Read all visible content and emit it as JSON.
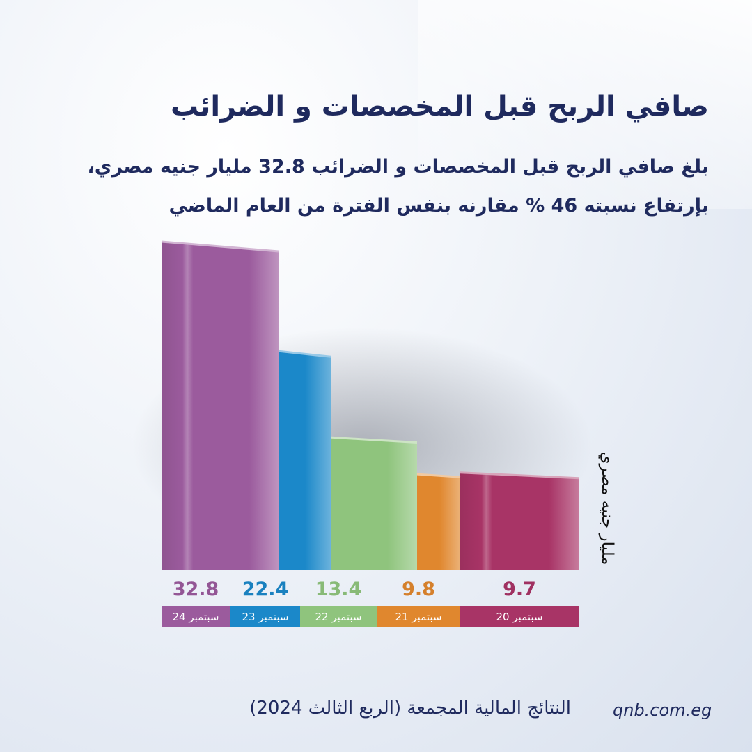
{
  "header": {
    "title": "صافي الربح قبل المخصصات و الضرائب",
    "subtitle_line1": "بلغ صافي الربح قبل المخصصات و الضرائب 32.8 مليار  جنيه مصري،",
    "subtitle_line2": "بإرتفاع نسبته 46 % مقارنه بنفس الفترة من العام الماضي"
  },
  "unit_label": "مليار جنيه مصري",
  "footer": {
    "title": "النتائج المالية المجمعة (الربع الثالث 2024)",
    "website": "qnb.com.eg"
  },
  "colors": {
    "title": "#1f2a5e",
    "bar_24": "#9b5b9d",
    "bar_23": "#1b88c9",
    "bar_22": "#8fc47d",
    "bar_21": "#e0872e",
    "bar_20": "#a83466"
  },
  "chart_data": {
    "type": "bar",
    "categories": [
      "سبتمبر 24",
      "سبتمبر 23",
      "سبتمبر 22",
      "سبتمبر 21",
      "سبتمبر 20"
    ],
    "values": [
      32.8,
      22.4,
      13.4,
      9.8,
      9.7
    ],
    "value_labels": [
      "32.8",
      "22.4",
      "13.4",
      "9.8",
      "9.7"
    ],
    "colors": [
      "#9b5b9d",
      "#1b88c9",
      "#8fc47d",
      "#e0872e",
      "#a83466"
    ],
    "ylabel": "مليار جنيه مصري",
    "ylim": [
      0,
      35
    ],
    "grid": false
  }
}
